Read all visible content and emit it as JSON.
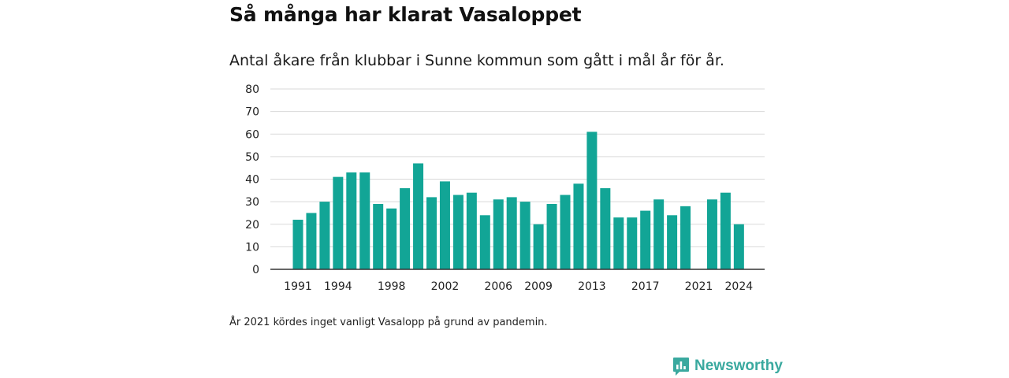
{
  "title": "Så många har klarat Vasaloppet",
  "subtitle": "Antal åkare från klubbar i Sunne kommun som gått i mål år för år.",
  "footnote": "År 2021 kördes inget vanligt Vasalopp på grund av pandemin.",
  "brand": {
    "name": "Newsworthy",
    "icon": "newsworthy-logo-icon",
    "color": "#3aa99f"
  },
  "colors": {
    "bar": "#12a596",
    "grid": "#d9d9d9",
    "axis": "#333333"
  },
  "chart_data": {
    "type": "bar",
    "title": "Så många har klarat Vasaloppet",
    "subtitle": "Antal åkare från klubbar i Sunne kommun som gått i mål år för år.",
    "categories": [
      1991,
      1992,
      1993,
      1994,
      1995,
      1996,
      1997,
      1998,
      1999,
      2000,
      2001,
      2002,
      2003,
      2004,
      2005,
      2006,
      2007,
      2008,
      2009,
      2010,
      2011,
      2012,
      2013,
      2014,
      2015,
      2016,
      2017,
      2018,
      2019,
      2020,
      2021,
      2022,
      2023,
      2024
    ],
    "values": [
      22,
      25,
      30,
      41,
      43,
      43,
      29,
      27,
      36,
      47,
      32,
      39,
      33,
      34,
      24,
      31,
      32,
      30,
      20,
      29,
      33,
      38,
      61,
      36,
      23,
      23,
      26,
      31,
      24,
      28,
      null,
      31,
      34,
      20
    ],
    "x_tick_labels": [
      "1991",
      "1994",
      "1998",
      "2002",
      "2006",
      "2009",
      "2013",
      "2017",
      "2021",
      "2024"
    ],
    "y_ticks": [
      0,
      10,
      20,
      30,
      40,
      50,
      60,
      70,
      80
    ],
    "ylim": [
      0,
      80
    ],
    "grid": true,
    "legend": "none",
    "xlabel": "",
    "ylabel": ""
  }
}
